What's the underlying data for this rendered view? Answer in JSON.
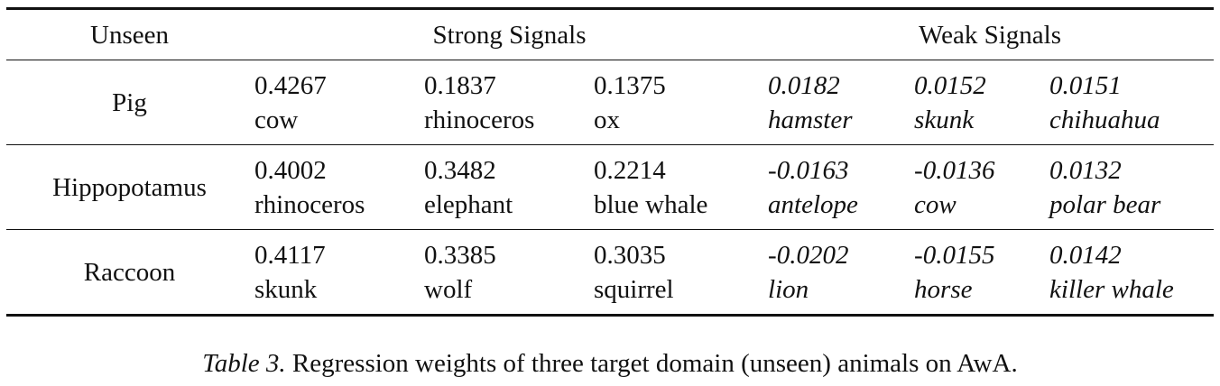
{
  "table": {
    "headers": {
      "unseen": "Unseen",
      "strong": "Strong Signals",
      "weak": "Weak Signals"
    },
    "rows": [
      {
        "name": "Pig",
        "strong": [
          {
            "weight": "0.4267",
            "animal": "cow"
          },
          {
            "weight": "0.1837",
            "animal": "rhinoceros"
          },
          {
            "weight": "0.1375",
            "animal": "ox"
          }
        ],
        "weak": [
          {
            "weight": "0.0182",
            "animal": "hamster"
          },
          {
            "weight": "0.0152",
            "animal": "skunk"
          },
          {
            "weight": "0.0151",
            "animal": "chihuahua"
          }
        ]
      },
      {
        "name": "Hippopotamus",
        "strong": [
          {
            "weight": "0.4002",
            "animal": "rhinoceros"
          },
          {
            "weight": "0.3482",
            "animal": "elephant"
          },
          {
            "weight": "0.2214",
            "animal": "blue whale"
          }
        ],
        "weak": [
          {
            "weight": "-0.0163",
            "animal": "antelope"
          },
          {
            "weight": "-0.0136",
            "animal": "cow"
          },
          {
            "weight": "0.0132",
            "animal": "polar bear"
          }
        ]
      },
      {
        "name": "Raccoon",
        "strong": [
          {
            "weight": "0.4117",
            "animal": "skunk"
          },
          {
            "weight": "0.3385",
            "animal": "wolf"
          },
          {
            "weight": "0.3035",
            "animal": "squirrel"
          }
        ],
        "weak": [
          {
            "weight": "-0.0202",
            "animal": "lion"
          },
          {
            "weight": "-0.0155",
            "animal": "horse"
          },
          {
            "weight": "0.0142",
            "animal": "killer whale"
          }
        ]
      }
    ]
  },
  "caption": {
    "label": "Table 3.",
    "text": "Regression weights of three target domain (unseen) animals on AwA."
  }
}
